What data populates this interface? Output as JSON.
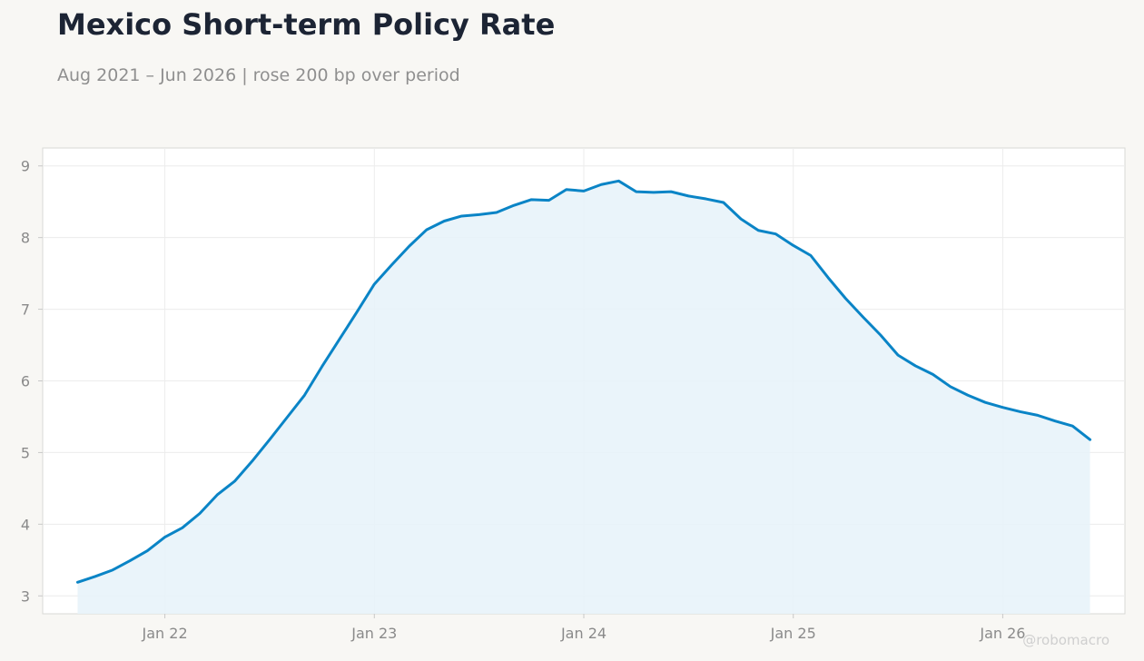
{
  "title": "Mexico Short-term Policy Rate",
  "subtitle": "Aug 2021 – Jun 2026 | rose 200 bp over period",
  "watermark": "@robomacro",
  "colors": {
    "line": "#0a84c6",
    "fill": "#e8f3fa",
    "grid": "#ececec",
    "plot_border": "#d9d9d6",
    "background": "#f8f7f4"
  },
  "chart_data": {
    "type": "area",
    "title": "Mexico Short-term Policy Rate",
    "xlabel": "",
    "ylabel": "",
    "grid": true,
    "xlim": [
      "2021-06",
      "2026-08"
    ],
    "ylim": [
      2.75,
      9.25
    ],
    "x_ticks": [
      {
        "date": "2022-01",
        "label": "Jan 22"
      },
      {
        "date": "2023-01",
        "label": "Jan 23"
      },
      {
        "date": "2024-01",
        "label": "Jan 24"
      },
      {
        "date": "2025-01",
        "label": "Jan 25"
      },
      {
        "date": "2026-01",
        "label": "Jan 26"
      }
    ],
    "y_ticks": [
      3,
      4,
      5,
      6,
      7,
      8,
      9
    ],
    "series": [
      {
        "x": [
          "2021-08",
          "2021-09",
          "2021-10",
          "2021-11",
          "2021-12",
          "2022-01",
          "2022-02",
          "2022-03",
          "2022-04",
          "2022-05",
          "2022-06",
          "2022-07",
          "2022-08",
          "2022-09",
          "2022-10",
          "2022-11",
          "2022-12",
          "2023-01",
          "2023-02",
          "2023-03",
          "2023-04",
          "2023-05",
          "2023-06",
          "2023-07",
          "2023-08",
          "2023-09",
          "2023-10",
          "2023-11",
          "2023-12",
          "2024-01",
          "2024-02",
          "2024-03",
          "2024-04",
          "2024-05",
          "2024-06",
          "2024-07",
          "2024-08",
          "2024-09",
          "2024-10",
          "2024-11",
          "2024-12",
          "2025-01",
          "2025-02",
          "2025-03",
          "2025-04",
          "2025-05",
          "2025-06",
          "2025-07",
          "2025-08",
          "2025-09",
          "2025-10",
          "2025-11",
          "2025-12",
          "2026-01",
          "2026-02",
          "2026-03",
          "2026-04",
          "2026-05",
          "2026-06"
        ],
        "values": [
          3.19,
          3.27,
          3.36,
          3.49,
          3.63,
          3.82,
          3.95,
          4.15,
          4.41,
          4.6,
          4.88,
          5.18,
          5.49,
          5.8,
          6.2,
          6.58,
          6.96,
          7.35,
          7.62,
          7.88,
          8.11,
          8.23,
          8.3,
          8.32,
          8.35,
          8.45,
          8.53,
          8.52,
          8.67,
          8.65,
          8.74,
          8.79,
          8.64,
          8.63,
          8.64,
          8.58,
          8.54,
          8.49,
          8.26,
          8.1,
          8.05,
          7.89,
          7.75,
          7.44,
          7.15,
          6.89,
          6.64,
          6.36,
          6.21,
          6.09,
          5.92,
          5.8,
          5.7,
          5.63,
          5.57,
          5.52,
          5.44,
          5.37,
          5.18
        ]
      }
    ]
  }
}
